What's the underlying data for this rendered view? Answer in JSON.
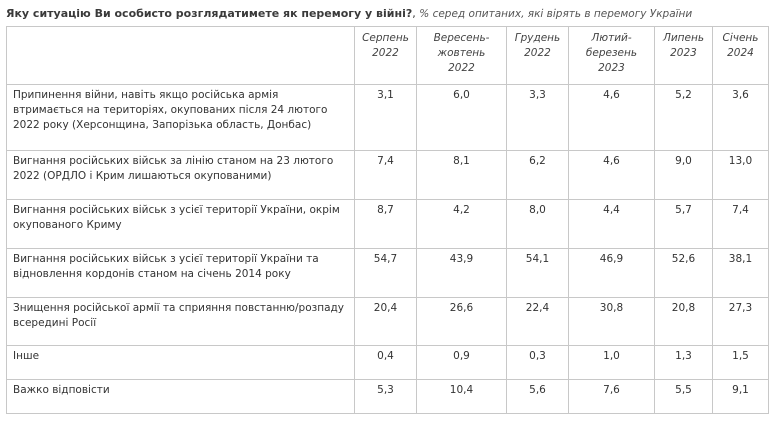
{
  "question": "Яку ситуацію Ви особисто розглядатимете як перемогу у війні?",
  "question_suffix": ",",
  "subtitle": "% серед опитаних, які вірять в перемогу України",
  "columns": [
    "Серпень 2022",
    "Вересень-жовтень 2022",
    "Грудень 2022",
    "Лютий-березень 2023",
    "Липень 2023",
    "Січень 2024"
  ],
  "rows": [
    {
      "label": "Припинення війни, навіть якщо російська армія втримається на територіях, окупованих після 24 лютого 2022 року (Херсонщина, Запорізька область, Донбас)",
      "values": [
        "3,1",
        "6,0",
        "3,3",
        "4,6",
        "5,2",
        "3,6"
      ]
    },
    {
      "label": "Вигнання російських військ за лінію станом на 23 лютого 2022 (ОРДЛО і Крим лишаються окупованими)",
      "values": [
        "7,4",
        "8,1",
        "6,2",
        "4,6",
        "9,0",
        "13,0"
      ]
    },
    {
      "label": "Вигнання російських військ з усієї території України, окрім окупованого Криму",
      "values": [
        "8,7",
        "4,2",
        "8,0",
        "4,4",
        "5,7",
        "7,4"
      ]
    },
    {
      "label": "Вигнання російських військ з усієї території України та відновлення кордонів станом на січень 2014 року",
      "values": [
        "54,7",
        "43,9",
        "54,1",
        "46,9",
        "52,6",
        "38,1"
      ]
    },
    {
      "label": "Знищення російської армії та сприяння повстанню/розпаду всередині Росії",
      "values": [
        "20,4",
        "26,6",
        "22,4",
        "30,8",
        "20,8",
        "27,3"
      ]
    },
    {
      "label": "Інше",
      "values": [
        "0,4",
        "0,9",
        "0,3",
        "1,0",
        "1,3",
        "1,5"
      ]
    },
    {
      "label": "Важко відповісти",
      "values": [
        "5,3",
        "10,4",
        "5,6",
        "7,6",
        "5,5",
        "9,1"
      ]
    }
  ]
}
